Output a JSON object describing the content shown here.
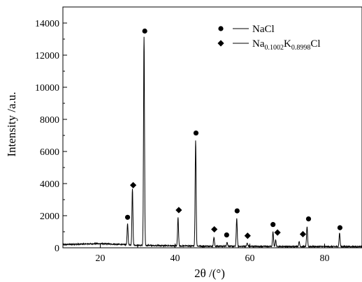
{
  "chart_data": {
    "type": "line",
    "title": "",
    "xlabel": "2θ /(°)",
    "ylabel": "Intensity /a.u.",
    "xlim": [
      10,
      90
    ],
    "ylim": [
      0,
      15000
    ],
    "x_ticks": [
      20,
      40,
      60,
      80
    ],
    "y_ticks": [
      0,
      2000,
      4000,
      6000,
      8000,
      10000,
      12000,
      14000
    ],
    "x_tick_labels": [
      "20",
      "40",
      "60",
      "80"
    ],
    "y_tick_labels": [
      "0",
      "2000",
      "4000",
      "6000",
      "8000",
      "10000",
      "12000",
      "14000"
    ],
    "grid": false,
    "legend_position": "top-right",
    "legend": [
      {
        "marker": "circle",
        "parts": [
          {
            "text": "NaCl",
            "sub": false
          }
        ]
      },
      {
        "marker": "diamond",
        "parts": [
          {
            "text": "Na",
            "sub": false
          },
          {
            "text": "0.1002",
            "sub": true
          },
          {
            "text": "K",
            "sub": false
          },
          {
            "text": "0.8998",
            "sub": true
          },
          {
            "text": "Cl",
            "sub": false
          }
        ]
      }
    ],
    "baseline": [
      [
        10,
        200
      ],
      [
        20,
        260
      ],
      [
        30,
        160
      ],
      [
        40,
        120
      ],
      [
        50,
        100
      ],
      [
        60,
        90
      ],
      [
        70,
        80
      ],
      [
        80,
        80
      ],
      [
        90,
        70
      ]
    ],
    "peaks": [
      {
        "x": 27.3,
        "y": 1300
      },
      {
        "x": 28.6,
        "y": 3500
      },
      {
        "x": 31.7,
        "y": 13000
      },
      {
        "x": 40.8,
        "y": 1750
      },
      {
        "x": 45.5,
        "y": 6600
      },
      {
        "x": 50.4,
        "y": 550
      },
      {
        "x": 53.9,
        "y": 250
      },
      {
        "x": 56.5,
        "y": 1750
      },
      {
        "x": 59.3,
        "y": 200
      },
      {
        "x": 66.2,
        "y": 900
      },
      {
        "x": 66.9,
        "y": 400
      },
      {
        "x": 73.2,
        "y": 300
      },
      {
        "x": 75.3,
        "y": 1250
      },
      {
        "x": 84.0,
        "y": 850
      }
    ],
    "markers": [
      {
        "type": "circle",
        "x": 27.3,
        "y": 1900
      },
      {
        "type": "diamond",
        "x": 28.8,
        "y": 3900
      },
      {
        "type": "circle",
        "x": 31.9,
        "y": 13500
      },
      {
        "type": "diamond",
        "x": 41.0,
        "y": 2350
      },
      {
        "type": "circle",
        "x": 45.6,
        "y": 7150
      },
      {
        "type": "diamond",
        "x": 50.5,
        "y": 1150
      },
      {
        "type": "circle",
        "x": 53.8,
        "y": 800
      },
      {
        "type": "circle",
        "x": 56.6,
        "y": 2300
      },
      {
        "type": "diamond",
        "x": 59.4,
        "y": 750
      },
      {
        "type": "circle",
        "x": 66.2,
        "y": 1450
      },
      {
        "type": "diamond",
        "x": 67.4,
        "y": 950
      },
      {
        "type": "diamond",
        "x": 74.2,
        "y": 850
      },
      {
        "type": "circle",
        "x": 75.7,
        "y": 1800
      },
      {
        "type": "circle",
        "x": 84.1,
        "y": 1250
      }
    ]
  }
}
